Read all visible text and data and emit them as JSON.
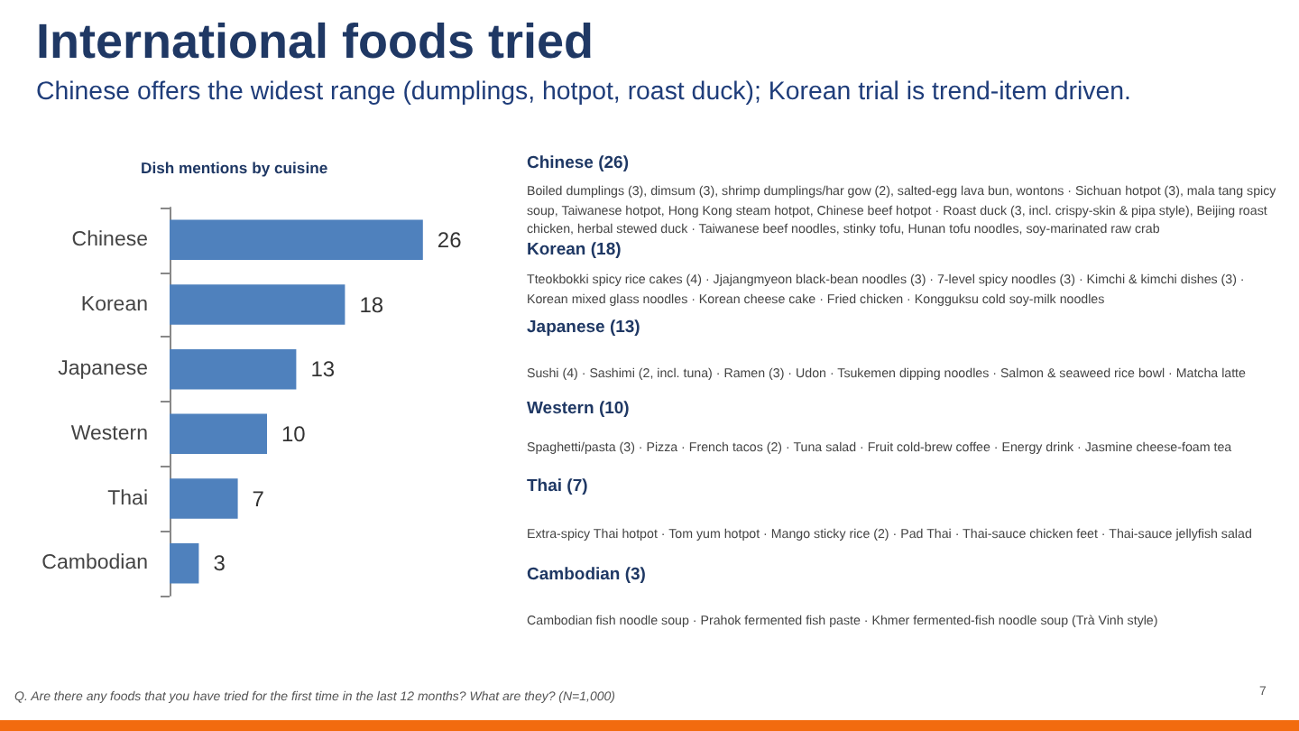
{
  "chart_data": {
    "type": "bar",
    "orientation": "horizontal",
    "title": "International foods tried",
    "subtitle": "Chinese offers the widest range (dumplings, hotpot, roast duck); Korean trial is trend-item driven.",
    "categories": [
      "Chinese",
      "Korean",
      "Japanese",
      "Western",
      "Thai",
      "Cambodian"
    ],
    "values": [
      26,
      18,
      13,
      10,
      7,
      3
    ],
    "color": "#4f81bd",
    "data_labels": true,
    "annotations": [
      "Dish mentions by cuisine",
      "Chinese (26)",
      "Boiled dumplings (3), dimsum (3), shrimp dumplings/har gow (2), salted-egg lava bun, wontons · Sichuan hotpot (3), mala tang spicy soup, Taiwanese hotpot, Hong Kong steam hotpot, Chinese beef hotpot · Roast duck (3, incl. crispy-skin & pipa style), Beijing roast chicken, herbal stewed duck · Taiwanese beef noodles, stinky tofu, Hunan tofu noodles, soy-marinated raw crab",
      "Korean (18)",
      "Tteokbokki spicy rice cakes (4) · Jjajangmyeon black-bean noodles (3) · 7-level spicy noodles (3) · Kimchi & kimchi dishes (3) · Korean mixed glass noodles · Korean cheese cake · Fried chicken · Kongguksu cold soy-milk noodles",
      "Japanese (13)",
      "Sushi (4) · Sashimi (2, incl. tuna) · Ramen (3) · Udon · Tsukemen dipping noodles · Salmon & seaweed rice bowl · Matcha latte",
      "Western (10)",
      "Spaghetti/pasta (3) · Pizza · French tacos (2) · Tuna salad · Fruit cold-brew coffee · Energy drink · Jasmine cheese-foam tea",
      "Thai (7)",
      "Extra-spicy Thai hotpot · Tom yum hotpot · Mango sticky rice (2) · Pad Thai · Thai-sauce chicken feet · Thai-sauce jellyfish salad",
      "Cambodian (3)",
      "Cambodian fish noodle soup · Prahok fermented fish paste · Khmer fermented-fish noodle soup (Trà Vinh style)",
      "Q. Are there any foods that you have tried for the first time in the last 12 months? What are they? (N=1,000)",
      "7"
    ]
  }
}
